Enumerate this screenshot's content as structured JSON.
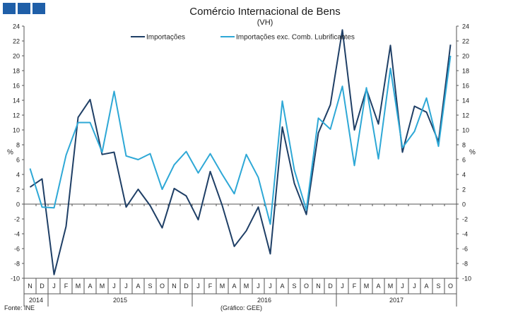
{
  "header": {
    "logo_icon": "logo-blocks-icon"
  },
  "chart_data": {
    "type": "line",
    "title": "Comércio Internacional de Bens",
    "subtitle": "(VH)",
    "ylabel_left": "%",
    "ylabel_right": "%",
    "ylim": [
      -10,
      24
    ],
    "yticks": [
      -10,
      -8,
      -6,
      -4,
      -2,
      0,
      2,
      4,
      6,
      8,
      10,
      12,
      14,
      16,
      18,
      20,
      22,
      24
    ],
    "grid": false,
    "legend_position": "top-center",
    "months": [
      "N",
      "D",
      "J",
      "F",
      "M",
      "A",
      "M",
      "J",
      "J",
      "A",
      "S",
      "O",
      "N",
      "D",
      "J",
      "F",
      "M",
      "A",
      "M",
      "J",
      "J",
      "A",
      "S",
      "O",
      "N",
      "D",
      "J",
      "F",
      "M",
      "A",
      "M",
      "J",
      "J",
      "A",
      "S",
      "O"
    ],
    "years": [
      {
        "label": "2014",
        "start": 0,
        "end": 2
      },
      {
        "label": "2015",
        "start": 2,
        "end": 14
      },
      {
        "label": "2016",
        "start": 14,
        "end": 26
      },
      {
        "label": "2017",
        "start": 26,
        "end": 36
      }
    ],
    "series": [
      {
        "name": "Importações",
        "color": "#1f3f66",
        "values": [
          2.3,
          3.4,
          -9.5,
          -3.0,
          11.7,
          14.1,
          6.7,
          7.0,
          -0.4,
          2.0,
          -0.2,
          -3.2,
          2.1,
          1.1,
          -2.1,
          4.4,
          -0.2,
          -5.7,
          -3.6,
          -0.4,
          -6.7,
          10.4,
          2.8,
          -1.4,
          9.6,
          13.4,
          23.5,
          10.0,
          15.5,
          10.8,
          21.4,
          7.0,
          13.2,
          12.4,
          8.4,
          21.5
        ]
      },
      {
        "name": "Importações exc. Comb. Lubrificantes",
        "color": "#2ea8d6",
        "values": [
          4.8,
          -0.4,
          -0.5,
          6.6,
          11.0,
          11.0,
          7.0,
          15.2,
          6.5,
          6.0,
          6.8,
          2.0,
          5.3,
          7.1,
          4.2,
          6.8,
          4.0,
          1.4,
          6.7,
          3.6,
          -2.7,
          13.9,
          4.6,
          -0.8,
          11.6,
          10.1,
          15.9,
          5.2,
          15.7,
          6.1,
          18.3,
          7.6,
          9.8,
          14.3,
          7.8,
          20.0
        ]
      }
    ]
  },
  "footer": {
    "source": "Fonte: INE",
    "credit": "(Gráfico: GEE)"
  }
}
